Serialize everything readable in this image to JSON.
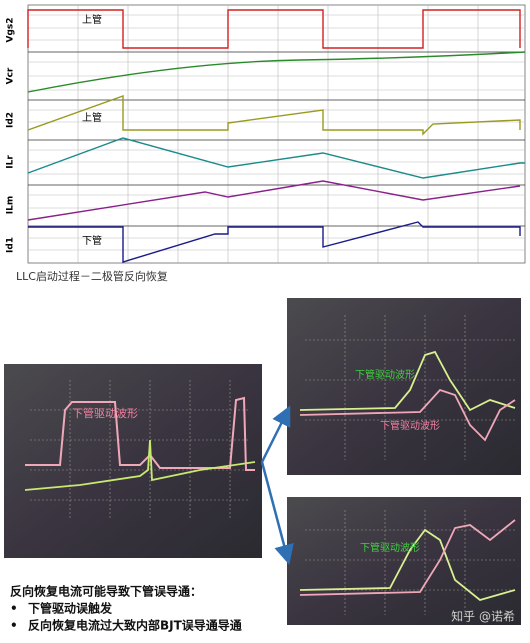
{
  "plot": {
    "panels": [
      "Vgs2",
      "Vcr",
      "Id2",
      "ILr",
      "ILm",
      "Id1"
    ],
    "annotations": [
      "上管",
      "上管",
      "下管"
    ]
  },
  "caption": "LLC启动过程－二极管反向恢复",
  "scope_labels": [
    "下管驱动波形",
    "下管驱动波形",
    "下管驱动波形",
    "下管驱动波形"
  ],
  "body": {
    "heading": "反向恢复电流可能导致下管误导通：",
    "bullets": [
      "下管驱动误触发",
      "反向恢复电流过大致内部BJT误导通导通"
    ]
  },
  "watermark": "知乎 @诺希"
}
